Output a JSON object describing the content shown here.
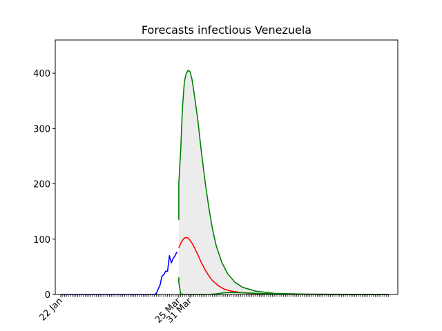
{
  "chart_data": {
    "type": "line",
    "title": "Forecasts infectious Venezuela",
    "xlabel": "",
    "ylabel": "",
    "x_unit": "day",
    "xlim": [
      "2020-01-19",
      "2020-07-20"
    ],
    "ylim": [
      0,
      460
    ],
    "y_ticks": [
      0,
      100,
      200,
      300,
      400
    ],
    "x_ticks": [
      {
        "date": "2020-01-22",
        "label": "22 Jan"
      },
      {
        "date": "2020-03-25",
        "label": "25 Mar"
      },
      {
        "date": "2020-03-31",
        "label": "31 Mar"
      }
    ],
    "minor_ticks_range": [
      "2020-01-22",
      "2020-07-15"
    ],
    "grid": false,
    "series": [
      {
        "role": "observed",
        "color": "#0000ff",
        "points": [
          [
            "2020-01-22",
            0
          ],
          [
            "2020-03-12",
            0
          ],
          [
            "2020-03-13",
            2
          ],
          [
            "2020-03-14",
            10
          ],
          [
            "2020-03-15",
            17
          ],
          [
            "2020-03-16",
            33
          ],
          [
            "2020-03-17",
            36
          ],
          [
            "2020-03-18",
            42
          ],
          [
            "2020-03-19",
            42
          ],
          [
            "2020-03-20",
            70
          ],
          [
            "2020-03-21",
            57
          ],
          [
            "2020-03-22",
            65
          ],
          [
            "2020-03-23",
            70
          ],
          [
            "2020-03-24",
            77
          ]
        ]
      },
      {
        "role": "forecast",
        "color": "#ff0000",
        "points": [
          [
            "2020-03-25",
            84
          ],
          [
            "2020-03-26",
            92
          ],
          [
            "2020-03-27",
            98
          ],
          [
            "2020-03-28",
            102
          ],
          [
            "2020-03-29",
            103
          ],
          [
            "2020-03-30",
            102
          ],
          [
            "2020-03-31",
            98
          ],
          [
            "2020-04-01",
            93
          ],
          [
            "2020-04-02",
            87
          ],
          [
            "2020-04-04",
            73
          ],
          [
            "2020-04-06",
            58
          ],
          [
            "2020-04-08",
            45
          ],
          [
            "2020-04-10",
            34
          ],
          [
            "2020-04-12",
            25
          ],
          [
            "2020-04-15",
            16
          ],
          [
            "2020-04-18",
            10
          ],
          [
            "2020-04-22",
            6
          ],
          [
            "2020-04-28",
            3
          ],
          [
            "2020-05-05",
            1.5
          ],
          [
            "2020-05-20",
            0.5
          ],
          [
            "2020-06-10",
            0.1
          ],
          [
            "2020-07-15",
            0
          ]
        ]
      },
      {
        "role": "upper-bound",
        "color": "#008000",
        "points": [
          [
            "2020-03-25",
            135
          ],
          [
            "2020-03-25",
            200
          ],
          [
            "2020-03-26",
            260
          ],
          [
            "2020-03-27",
            340
          ],
          [
            "2020-03-28",
            385
          ],
          [
            "2020-03-29",
            400
          ],
          [
            "2020-03-30",
            405
          ],
          [
            "2020-03-31",
            403
          ],
          [
            "2020-04-01",
            390
          ],
          [
            "2020-04-02",
            368
          ],
          [
            "2020-04-04",
            320
          ],
          [
            "2020-04-06",
            260
          ],
          [
            "2020-04-08",
            205
          ],
          [
            "2020-04-10",
            158
          ],
          [
            "2020-04-12",
            118
          ],
          [
            "2020-04-14",
            88
          ],
          [
            "2020-04-17",
            58
          ],
          [
            "2020-04-20",
            38
          ],
          [
            "2020-04-24",
            22
          ],
          [
            "2020-04-28",
            13
          ],
          [
            "2020-05-05",
            6
          ],
          [
            "2020-05-15",
            2
          ],
          [
            "2020-06-01",
            0.6
          ],
          [
            "2020-07-15",
            0
          ]
        ]
      },
      {
        "role": "lower-bound",
        "color": "#008000",
        "points": [
          [
            "2020-03-25",
            31
          ],
          [
            "2020-03-25",
            22
          ],
          [
            "2020-03-26",
            1
          ],
          [
            "2020-03-28",
            0
          ],
          [
            "2020-04-10",
            0
          ],
          [
            "2020-04-14",
            1
          ],
          [
            "2020-04-18",
            3
          ],
          [
            "2020-04-22",
            3.5
          ],
          [
            "2020-04-28",
            3
          ],
          [
            "2020-05-05",
            2
          ],
          [
            "2020-05-15",
            1
          ],
          [
            "2020-06-01",
            0.3
          ],
          [
            "2020-07-15",
            0
          ]
        ]
      }
    ],
    "band_fill_color": "#ececec"
  }
}
